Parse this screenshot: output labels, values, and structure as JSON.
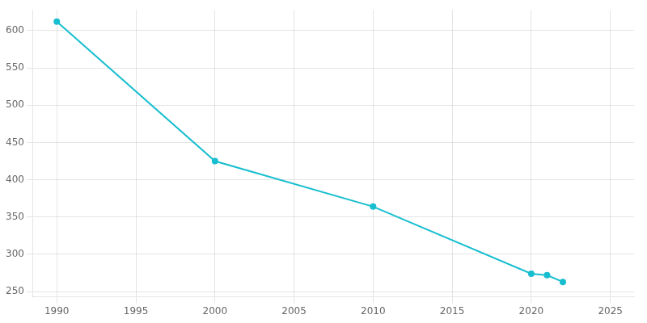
{
  "chart_data": {
    "type": "line",
    "x": [
      1990,
      2000,
      2010,
      2020,
      2021,
      2022
    ],
    "values": [
      612,
      425,
      364,
      274,
      272,
      263
    ],
    "color": "#17BECF",
    "marker": "o",
    "xlim": [
      1988.5,
      2026.5
    ],
    "xticks": [
      1990,
      1995,
      2000,
      2005,
      2010,
      2015,
      2020,
      2025
    ],
    "ylim": [
      243,
      628
    ],
    "yticks": [
      250,
      300,
      350,
      400,
      450,
      500,
      550,
      600
    ],
    "grid": true
  }
}
